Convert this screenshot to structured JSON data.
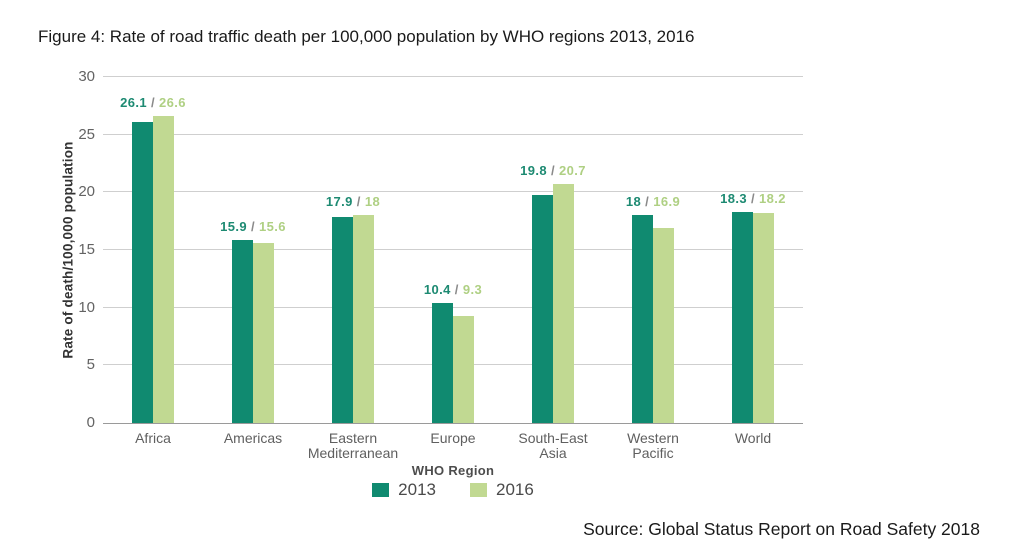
{
  "page": {
    "title": "Figure 4: Rate of road traffic death per 100,000 population by WHO regions 2013, 2016",
    "source": "Source: Global Status Report on Road Safety 2018"
  },
  "chart_data": {
    "type": "bar",
    "title": "Figure 4: Rate of road traffic death per 100,000 population by WHO regions 2013, 2016",
    "categories": [
      "Africa",
      "Americas",
      "Eastern\nMediterranean",
      "Europe",
      "South-East\nAsia",
      "Western\nPacific",
      "World"
    ],
    "series": [
      {
        "name": "2013",
        "color": "#108A70",
        "label_color": "#1D8A72",
        "values": [
          26.1,
          15.9,
          17.9,
          10.4,
          19.8,
          18,
          18.3
        ]
      },
      {
        "name": "2016",
        "color": "#C1D992",
        "label_color": "#AFD083",
        "values": [
          26.6,
          15.6,
          18,
          9.3,
          20.7,
          16.9,
          18.2
        ]
      }
    ],
    "label_separator": " / ",
    "separator_color": "#8a8a8a",
    "xlabel": "WHO Region",
    "ylabel": "Rate of death/100,000 population",
    "ylim": [
      0,
      30
    ],
    "yticks": [
      0,
      5,
      10,
      15,
      20,
      25,
      30
    ],
    "grid": "horizontal",
    "gridline_color": "#cfcfcf",
    "axis_line_color": "#9a9a9a",
    "legend_position": "bottom"
  }
}
